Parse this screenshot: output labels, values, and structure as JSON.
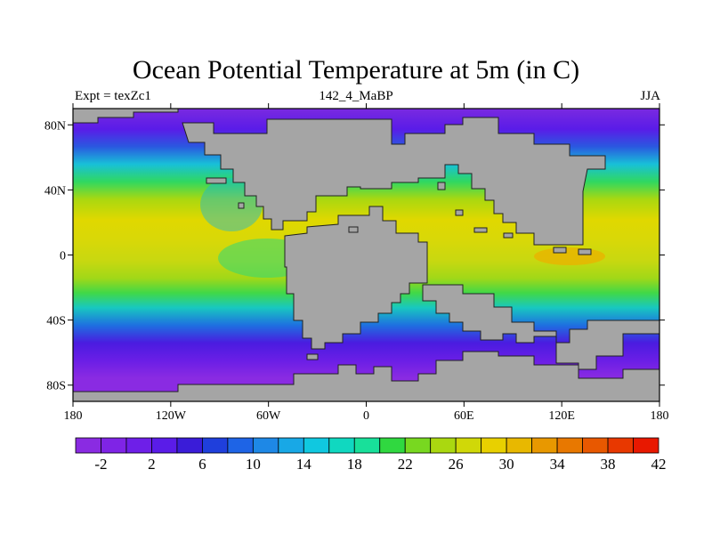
{
  "title": "Ocean Potential Temperature at 5m (in C)",
  "subtitle_left": "Expt = texZc1",
  "subtitle_center": "142_4_MaBP",
  "subtitle_right": "JJA",
  "map": {
    "lon_ticks": [
      "180",
      "120W",
      "60W",
      "0",
      "60E",
      "120E",
      "180"
    ],
    "lat_ticks": [
      "80N",
      "40N",
      "0",
      "40S",
      "80S"
    ],
    "lat_values": [
      80,
      40,
      0,
      -40,
      -80
    ],
    "lon_values": [
      -180,
      -120,
      -60,
      0,
      60,
      120,
      180
    ],
    "land_color": "#a5a5a5"
  },
  "colorbar": {
    "labels": [
      "-2",
      "2",
      "6",
      "10",
      "14",
      "18",
      "22",
      "26",
      "30",
      "34",
      "38",
      "42"
    ],
    "colors": [
      "#8a2be2",
      "#7f24e6",
      "#6e1fe8",
      "#5a1ce8",
      "#3a1cd8",
      "#1f3fdc",
      "#1e64e6",
      "#1e88e6",
      "#18a8e6",
      "#10c8e0",
      "#10d8c0",
      "#18e09a",
      "#30d840",
      "#78d820",
      "#aad810",
      "#d0d808",
      "#e8d000",
      "#e8b800",
      "#e89800",
      "#e87800",
      "#e85800",
      "#e83800",
      "#e81800"
    ]
  }
}
